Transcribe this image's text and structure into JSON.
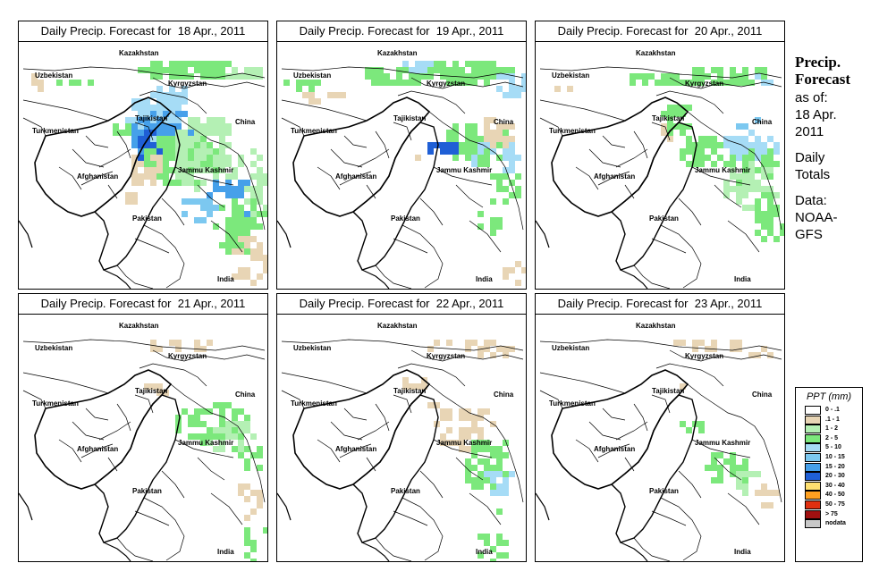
{
  "panels": [
    {
      "title": "Daily Precip. Forecast for  18 Apr., 2011"
    },
    {
      "title": "Daily Precip. Forecast for  19 Apr., 2011"
    },
    {
      "title": "Daily Precip. Forecast for  20 Apr., 2011"
    },
    {
      "title": "Daily Precip. Forecast for  21 Apr., 2011"
    },
    {
      "title": "Daily Precip. Forecast for  22 Apr., 2011"
    },
    {
      "title": "Daily Precip. Forecast for  23 Apr., 2011"
    }
  ],
  "map_labels": {
    "kazakhstan": "Kazakhstan",
    "uzbekistan": "Uzbekistan",
    "kyrgyzstan": "Kyrgyzstan",
    "tajikistan": "Tajikistan",
    "china": "China",
    "turkmenistan": "Turkmenistan",
    "afghanistan": "Afghanistan",
    "jammu_kashmir": "Jammu Kashmir",
    "pakistan": "Pakistan",
    "india": "India"
  },
  "side_panel": {
    "title_line1": "Precip.",
    "title_line2": "Forecast",
    "as_of_label": "as of:",
    "as_of_date_line1": "18 Apr.",
    "as_of_date_line2": "2011",
    "totals_line1": "Daily",
    "totals_line2": "Totals",
    "data_line1": "Data:",
    "data_line2": "NOAA-",
    "data_line3": "GFS"
  },
  "legend": {
    "title": "PPT (mm)",
    "items": [
      {
        "label": "0 - .1",
        "color": "#ffffff"
      },
      {
        "label": ".1 - 1",
        "color": "#e8d5b5"
      },
      {
        "label": "1 - 2",
        "color": "#b4f0b4"
      },
      {
        "label": "2 - 5",
        "color": "#7ce87c"
      },
      {
        "label": "5 - 10",
        "color": "#a6dcf6"
      },
      {
        "label": "10 - 15",
        "color": "#7cc8f0"
      },
      {
        "label": "15 - 20",
        "color": "#46a0ea"
      },
      {
        "label": "20 - 30",
        "color": "#1f5fd6"
      },
      {
        "label": "30 - 40",
        "color": "#ffe070"
      },
      {
        "label": "40 - 50",
        "color": "#ffa020"
      },
      {
        "label": "50 - 75",
        "color": "#e03010"
      },
      {
        "label": "> 75",
        "color": "#a01010"
      },
      {
        "label": "nodata",
        "color": "#c8c8c8"
      }
    ]
  }
}
